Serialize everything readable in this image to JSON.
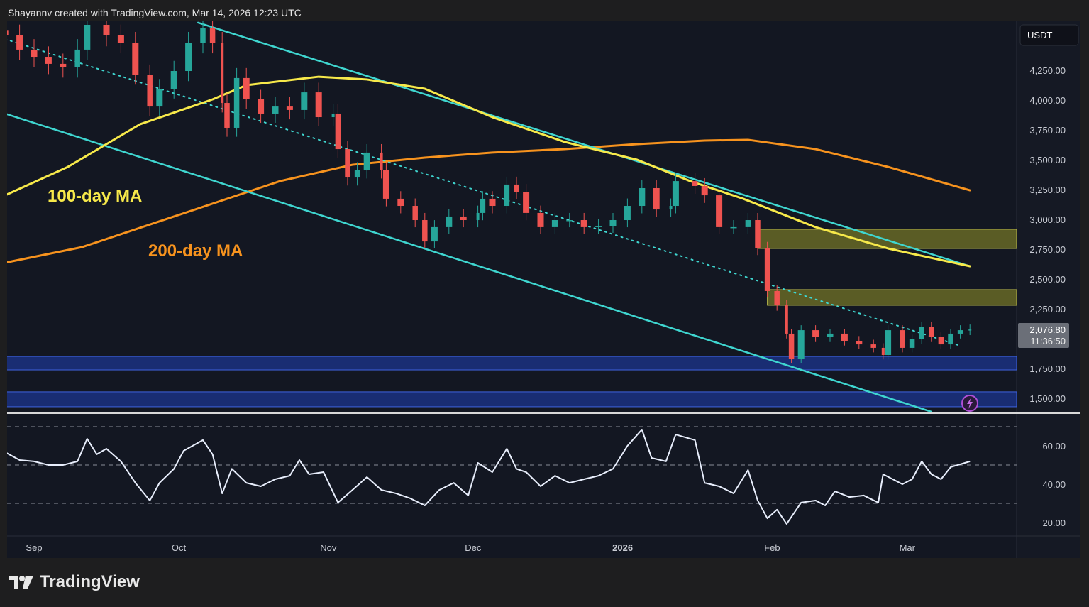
{
  "header": {
    "credit": "Shayannv created with TradingView.com, Mar 14, 2026 12:23 UTC"
  },
  "footer": {
    "brand": "TradingView"
  },
  "price_axis": {
    "currency": "USDT",
    "ticks": [
      "4,250.00",
      "4,000.00",
      "3,750.00",
      "3,500.00",
      "3,250.00",
      "3,000.00",
      "2,750.00",
      "2,500.00",
      "2,250.00",
      "1,750.00",
      "1,500.00"
    ],
    "tick_values": [
      4250,
      4000,
      3750,
      3500,
      3250,
      3000,
      2750,
      2500,
      2250,
      1750,
      1500
    ],
    "last_price": "2,076.80",
    "countdown": "11:36:50"
  },
  "rsi_axis": {
    "ticks": [
      "60.00",
      "40.00",
      "20.00"
    ],
    "tick_values": [
      60,
      40,
      20
    ],
    "bands": [
      70,
      50,
      30
    ]
  },
  "time_axis": {
    "labels": [
      "Sep",
      "Oct",
      "Nov",
      "Dec",
      "2026",
      "Feb",
      "Mar"
    ],
    "dates": [
      "2025-09-01",
      "2025-10-01",
      "2025-11-01",
      "2025-12-01",
      "2026-01-01",
      "2026-02-01",
      "2026-03-01"
    ]
  },
  "annotations": {
    "ma100_label": "100-day MA",
    "ma200_label": "200-day MA"
  },
  "colors": {
    "background": "#131722",
    "up": "#26a69a",
    "down": "#ef5350",
    "ma100": "#f7e94a",
    "ma200": "#f7931e",
    "channel": "#3fd6d0",
    "supply_zone": "#8a8a2a",
    "demand_zone": "#1d3ea8",
    "rsi": "#e8eefc"
  },
  "chart_data": [
    {
      "type": "candlestick",
      "timeframe": "1D",
      "ylim": [
        1400,
        4650
      ],
      "closes": [
        [
          "2025-08-26",
          4542
        ],
        [
          "2025-08-29",
          4423
        ],
        [
          "2025-09-01",
          4363
        ],
        [
          "2025-09-04",
          4304
        ],
        [
          "2025-09-07",
          4274
        ],
        [
          "2025-09-10",
          4423
        ],
        [
          "2025-09-12",
          4631
        ],
        [
          "2025-09-16",
          4542
        ],
        [
          "2025-09-19",
          4482
        ],
        [
          "2025-09-22",
          4214
        ],
        [
          "2025-09-25",
          3946
        ],
        [
          "2025-09-27",
          4095
        ],
        [
          "2025-09-30",
          4244
        ],
        [
          "2025-10-03",
          4482
        ],
        [
          "2025-10-06",
          4601
        ],
        [
          "2025-10-08",
          4482
        ],
        [
          "2025-10-10",
          3976
        ],
        [
          "2025-10-11",
          3768
        ],
        [
          "2025-10-13",
          4185
        ],
        [
          "2025-10-15",
          4006
        ],
        [
          "2025-10-18",
          3887
        ],
        [
          "2025-10-21",
          3946
        ],
        [
          "2025-10-24",
          3917
        ],
        [
          "2025-10-27",
          4065
        ],
        [
          "2025-10-30",
          3857
        ],
        [
          "2025-11-02",
          3887
        ],
        [
          "2025-11-03",
          3589
        ],
        [
          "2025-11-05",
          3351
        ],
        [
          "2025-11-07",
          3411
        ],
        [
          "2025-11-09",
          3560
        ],
        [
          "2025-11-12",
          3411
        ],
        [
          "2025-11-13",
          3173
        ],
        [
          "2025-11-16",
          3113
        ],
        [
          "2025-11-19",
          2994
        ],
        [
          "2025-11-21",
          2815
        ],
        [
          "2025-11-23",
          2935
        ],
        [
          "2025-11-26",
          3024
        ],
        [
          "2025-11-29",
          2994
        ],
        [
          "2025-12-02",
          3054
        ],
        [
          "2025-12-03",
          3173
        ],
        [
          "2025-12-05",
          3113
        ],
        [
          "2025-12-08",
          3292
        ],
        [
          "2025-12-10",
          3232
        ],
        [
          "2025-12-12",
          3054
        ],
        [
          "2025-12-15",
          2935
        ],
        [
          "2025-12-18",
          2994
        ],
        [
          "2025-12-21",
          2994
        ],
        [
          "2025-12-24",
          2935
        ],
        [
          "2025-12-27",
          2946
        ],
        [
          "2025-12-30",
          2994
        ],
        [
          "2026-01-02",
          3113
        ],
        [
          "2026-01-05",
          3262
        ],
        [
          "2026-01-08",
          3083
        ],
        [
          "2026-01-11",
          3113
        ],
        [
          "2026-01-12",
          3321
        ],
        [
          "2026-01-16",
          3280
        ],
        [
          "2026-01-18",
          3202
        ],
        [
          "2026-01-21",
          2935
        ],
        [
          "2026-01-24",
          2935
        ],
        [
          "2026-01-27",
          2994
        ],
        [
          "2026-01-29",
          2756
        ],
        [
          "2026-01-31",
          2399
        ],
        [
          "2026-02-02",
          2280
        ],
        [
          "2026-02-04",
          2042
        ],
        [
          "2026-02-05",
          1833
        ],
        [
          "2026-02-07",
          2071
        ],
        [
          "2026-02-10",
          2012
        ],
        [
          "2026-02-13",
          2042
        ],
        [
          "2026-02-16",
          1982
        ],
        [
          "2026-02-19",
          1952
        ],
        [
          "2026-02-22",
          1923
        ],
        [
          "2026-02-24",
          1863
        ],
        [
          "2026-02-25",
          2071
        ],
        [
          "2026-02-28",
          1923
        ],
        [
          "2026-03-02",
          1994
        ],
        [
          "2026-03-04",
          2101
        ],
        [
          "2026-03-06",
          2012
        ],
        [
          "2026-03-08",
          1952
        ],
        [
          "2026-03-10",
          2042
        ],
        [
          "2026-03-12",
          2071
        ],
        [
          "2026-03-14",
          2076.8
        ]
      ],
      "overlays": {
        "ma100": [
          [
            "2025-08-26",
            3202
          ],
          [
            "2025-09-08",
            3440
          ],
          [
            "2025-09-23",
            3798
          ],
          [
            "2025-10-08",
            4006
          ],
          [
            "2025-10-15",
            4125
          ],
          [
            "2025-10-30",
            4196
          ],
          [
            "2025-11-09",
            4173
          ],
          [
            "2025-11-21",
            4095
          ],
          [
            "2025-12-05",
            3857
          ],
          [
            "2025-12-20",
            3649
          ],
          [
            "2026-01-04",
            3500
          ],
          [
            "2026-01-15",
            3321
          ],
          [
            "2026-01-26",
            3173
          ],
          [
            "2026-02-10",
            2935
          ],
          [
            "2026-02-25",
            2756
          ],
          [
            "2026-03-14",
            2607
          ]
        ],
        "ma200": [
          [
            "2025-08-26",
            2637
          ],
          [
            "2025-09-11",
            2768
          ],
          [
            "2025-09-30",
            3024
          ],
          [
            "2025-10-22",
            3321
          ],
          [
            "2025-11-06",
            3458
          ],
          [
            "2025-11-21",
            3518
          ],
          [
            "2025-12-05",
            3560
          ],
          [
            "2025-12-20",
            3589
          ],
          [
            "2026-01-04",
            3631
          ],
          [
            "2026-01-18",
            3661
          ],
          [
            "2026-01-27",
            3667
          ],
          [
            "2026-02-10",
            3589
          ],
          [
            "2026-02-25",
            3440
          ],
          [
            "2026-03-14",
            3244
          ]
        ],
        "channel_upper": [
          [
            "2025-10-05",
            4649
          ],
          [
            "2026-03-14",
            2607
          ]
        ],
        "channel_lower": [
          [
            "2025-08-26",
            3887
          ],
          [
            "2026-03-06",
            1387
          ]
        ],
        "channel_mid": [
          [
            "2025-08-26",
            4512
          ],
          [
            "2026-03-12",
            1940
          ]
        ],
        "zones": [
          {
            "kind": "supply",
            "from": "2026-01-29",
            "low": 2756,
            "high": 2917
          },
          {
            "kind": "supply",
            "from": "2026-01-31",
            "low": 2280,
            "high": 2411
          },
          {
            "kind": "demand",
            "from": "2025-08-26",
            "low": 1738,
            "high": 1851
          },
          {
            "kind": "demand",
            "from": "2025-08-26",
            "low": 1429,
            "high": 1554
          }
        ]
      }
    },
    {
      "type": "line",
      "indicator": "RSI",
      "ylim": [
        13,
        76
      ],
      "values": [
        [
          "2025-08-26",
          56.7
        ],
        [
          "2025-08-29",
          52.6
        ],
        [
          "2025-09-01",
          51.9
        ],
        [
          "2025-09-04",
          50
        ],
        [
          "2025-09-07",
          50
        ],
        [
          "2025-09-10",
          51.9
        ],
        [
          "2025-09-12",
          63.7
        ],
        [
          "2025-09-14",
          55.6
        ],
        [
          "2025-09-16",
          58.5
        ],
        [
          "2025-09-19",
          51.9
        ],
        [
          "2025-09-22",
          40.7
        ],
        [
          "2025-09-25",
          31.5
        ],
        [
          "2025-09-27",
          40.7
        ],
        [
          "2025-09-30",
          48
        ],
        [
          "2025-10-02",
          57.4
        ],
        [
          "2025-10-06",
          63
        ],
        [
          "2025-10-08",
          55.6
        ],
        [
          "2025-10-10",
          35.2
        ],
        [
          "2025-10-12",
          48
        ],
        [
          "2025-10-15",
          40.7
        ],
        [
          "2025-10-18",
          38.9
        ],
        [
          "2025-10-21",
          42.6
        ],
        [
          "2025-10-24",
          44.4
        ],
        [
          "2025-10-26",
          52.6
        ],
        [
          "2025-10-28",
          45.2
        ],
        [
          "2025-10-31",
          46.3
        ],
        [
          "2025-11-03",
          30.4
        ],
        [
          "2025-11-06",
          37
        ],
        [
          "2025-11-09",
          43.7
        ],
        [
          "2025-11-12",
          37
        ],
        [
          "2025-11-15",
          35.2
        ],
        [
          "2025-11-18",
          32.6
        ],
        [
          "2025-11-21",
          28.9
        ],
        [
          "2025-11-24",
          37
        ],
        [
          "2025-11-27",
          40.7
        ],
        [
          "2025-11-30",
          34.1
        ],
        [
          "2025-12-02",
          51.1
        ],
        [
          "2025-12-05",
          46.3
        ],
        [
          "2025-12-08",
          58.5
        ],
        [
          "2025-12-10",
          48
        ],
        [
          "2025-12-12",
          46.3
        ],
        [
          "2025-12-15",
          38.9
        ],
        [
          "2025-12-18",
          44.4
        ],
        [
          "2025-12-21",
          40.7
        ],
        [
          "2025-12-24",
          42.6
        ],
        [
          "2025-12-27",
          44.4
        ],
        [
          "2025-12-30",
          48
        ],
        [
          "2026-01-02",
          60
        ],
        [
          "2026-01-05",
          68.5
        ],
        [
          "2026-01-07",
          53.7
        ],
        [
          "2026-01-10",
          51.9
        ],
        [
          "2026-01-12",
          65.9
        ],
        [
          "2026-01-16",
          63
        ],
        [
          "2026-01-18",
          40.7
        ],
        [
          "2026-01-21",
          38.9
        ],
        [
          "2026-01-24",
          35.2
        ],
        [
          "2026-01-27",
          47.4
        ],
        [
          "2026-01-29",
          31.5
        ],
        [
          "2026-01-31",
          22.2
        ],
        [
          "2026-02-02",
          26.7
        ],
        [
          "2026-02-04",
          19.3
        ],
        [
          "2026-02-07",
          30.4
        ],
        [
          "2026-02-10",
          31.5
        ],
        [
          "2026-02-12",
          28.9
        ],
        [
          "2026-02-14",
          36.3
        ],
        [
          "2026-02-17",
          33.3
        ],
        [
          "2026-02-20",
          34.1
        ],
        [
          "2026-02-23",
          30.4
        ],
        [
          "2026-02-24",
          45.2
        ],
        [
          "2026-02-28",
          40
        ],
        [
          "2026-03-02",
          42.6
        ],
        [
          "2026-03-04",
          51.9
        ],
        [
          "2026-03-06",
          45.2
        ],
        [
          "2026-03-08",
          42.6
        ],
        [
          "2026-03-10",
          48.9
        ],
        [
          "2026-03-14",
          51.9
        ]
      ]
    }
  ]
}
